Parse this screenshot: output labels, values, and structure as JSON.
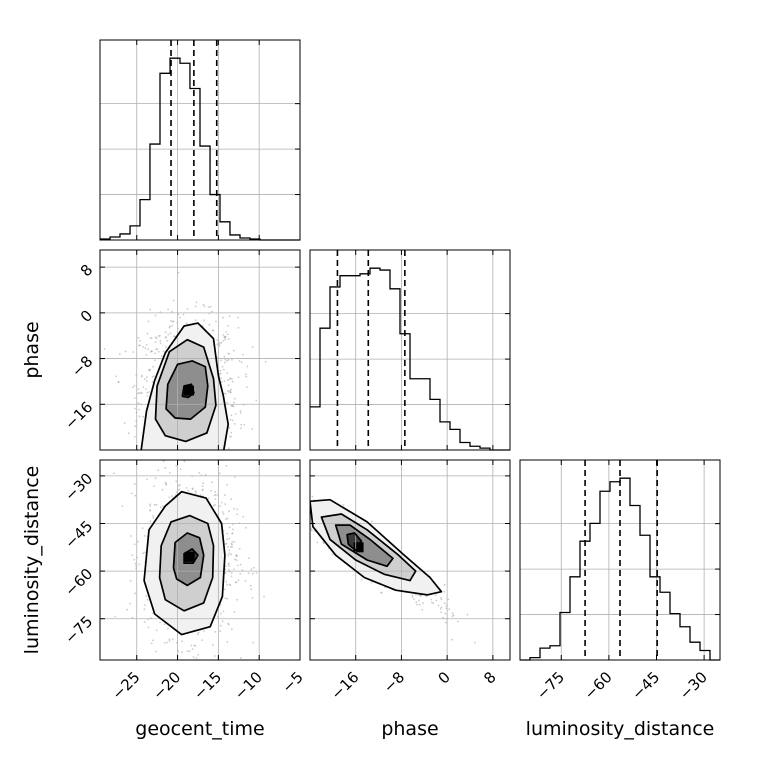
{
  "chart_data": {
    "type": "corner",
    "parameters": [
      "geocent_time",
      "phase",
      "luminosity_distance"
    ],
    "grid": true,
    "colors": {
      "line": "#000000",
      "grid": "#b0b0b0",
      "scatter": "#a0a0a0"
    },
    "axes": {
      "geocent_time": {
        "range": [
          -29.5,
          -5
        ],
        "ticks": [
          -25,
          -20,
          -15,
          -10,
          -5
        ]
      },
      "phase": {
        "range": [
          -24,
          11
        ],
        "ticks": [
          -16,
          -8,
          0,
          8
        ]
      },
      "luminosity_distance": {
        "range": [
          -88,
          -25
        ],
        "ticks": [
          -75,
          -60,
          -45,
          -30
        ]
      }
    },
    "tick_labels": {
      "geocent_time": [
        "−25",
        "−20",
        "−15",
        "−10",
        "−5"
      ],
      "phase": [
        "−16",
        "−8",
        "0",
        "8"
      ],
      "luminosity_distance": [
        "−75",
        "−60",
        "−45",
        "−30"
      ]
    },
    "quantiles": {
      "geocent_time": [
        -20.8,
        -18.0,
        -15.2
      ],
      "phase": [
        -19.2,
        -13.8,
        -7.4
      ],
      "luminosity_distance": [
        -67.5,
        -56.5,
        -44.8
      ]
    },
    "histograms": {
      "geocent_time": {
        "edges": [
          -29.5,
          -28.27,
          -27.05,
          -25.82,
          -24.6,
          -23.38,
          -22.15,
          -20.92,
          -19.7,
          -18.48,
          -17.25,
          -16.02,
          -14.8,
          -13.58,
          -12.35,
          -11.12,
          -9.9,
          -8.68,
          -7.45,
          -6.22,
          -5.0
        ],
        "counts": [
          1,
          3,
          6,
          14,
          40,
          95,
          165,
          180,
          175,
          150,
          93,
          45,
          18,
          5,
          2,
          1,
          0,
          0,
          0,
          0
        ]
      },
      "phase": {
        "edges": [
          -24,
          -22.25,
          -20.5,
          -18.75,
          -17,
          -15.25,
          -13.5,
          -11.75,
          -10,
          -8.25,
          -6.5,
          -4.75,
          -3,
          -1.25,
          0.5,
          2.25,
          4,
          5.75,
          7.5,
          9.25,
          11
        ],
        "counts": [
          23,
          65,
          87,
          93,
          93,
          94,
          97,
          96,
          86,
          62,
          38,
          38,
          27,
          15,
          11,
          4,
          2,
          1,
          0,
          0
        ]
      },
      "luminosity_distance": {
        "edges": [
          -88,
          -84.85,
          -81.7,
          -78.55,
          -75.4,
          -72.25,
          -69.1,
          -65.95,
          -62.8,
          -59.65,
          -56.5,
          -53.35,
          -50.2,
          -47.05,
          -43.9,
          -40.75,
          -37.6,
          -34.45,
          -31.3,
          -28.15,
          -25
        ],
        "counts": [
          0,
          2,
          10,
          12,
          40,
          70,
          100,
          115,
          142,
          150,
          153,
          130,
          105,
          70,
          57,
          39,
          28,
          15,
          8,
          0
        ]
      }
    },
    "joint": [
      {
        "x": "geocent_time",
        "y": "phase",
        "density_peak": [
          -18.6,
          -13.6
        ],
        "contours": [
          [
            [
              -24.5,
              -24.5
            ],
            [
              -23.8,
              -17.2
            ],
            [
              -22.8,
              -11.8
            ],
            [
              -21.5,
              -7.0
            ],
            [
              -19.2,
              -2.3
            ],
            [
              -17.5,
              -1.8
            ],
            [
              -15.6,
              -4.5
            ],
            [
              -15.0,
              -11.0
            ],
            [
              -14.4,
              -14.5
            ],
            [
              -13.8,
              -19.5
            ],
            [
              -14.4,
              -24.5
            ]
          ],
          [
            [
              -22.7,
              -18.6
            ],
            [
              -22.5,
              -12.8
            ],
            [
              -21.0,
              -6.8
            ],
            [
              -18.8,
              -4.7
            ],
            [
              -16.8,
              -6.0
            ],
            [
              -15.6,
              -11.5
            ],
            [
              -15.3,
              -16.2
            ],
            [
              -16.4,
              -21.0
            ],
            [
              -19.0,
              -22.5
            ],
            [
              -21.5,
              -21.5
            ]
          ],
          [
            [
              -21.4,
              -16.8
            ],
            [
              -21.2,
              -12.5
            ],
            [
              -20.0,
              -9.0
            ],
            [
              -18.2,
              -8.4
            ],
            [
              -16.6,
              -9.4
            ],
            [
              -16.3,
              -12.8
            ],
            [
              -16.6,
              -16.5
            ],
            [
              -18.4,
              -18.6
            ],
            [
              -20.3,
              -18.4
            ]
          ],
          [
            [
              -19.4,
              -14.6
            ],
            [
              -19.2,
              -12.8
            ],
            [
              -18.3,
              -12.5
            ],
            [
              -18.0,
              -14.0
            ],
            [
              -18.7,
              -14.8
            ]
          ]
        ]
      },
      {
        "x": "geocent_time",
        "y": "luminosity_distance",
        "density_peak": [
          -18.5,
          -55.5
        ],
        "contours": [
          [
            [
              -24.1,
              -63.0
            ],
            [
              -23.5,
              -47.0
            ],
            [
              -21.5,
              -39.5
            ],
            [
              -19.5,
              -35.0
            ],
            [
              -16.5,
              -37.0
            ],
            [
              -14.6,
              -45.0
            ],
            [
              -14.2,
              -55.0
            ],
            [
              -14.5,
              -68.0
            ],
            [
              -16.0,
              -77.5
            ],
            [
              -19.5,
              -80.0
            ],
            [
              -22.8,
              -73.5
            ]
          ],
          [
            [
              -22.2,
              -62.0
            ],
            [
              -22.0,
              -52.0
            ],
            [
              -20.8,
              -44.5
            ],
            [
              -18.5,
              -42.5
            ],
            [
              -16.3,
              -45.0
            ],
            [
              -15.6,
              -52.0
            ],
            [
              -15.7,
              -62.0
            ],
            [
              -16.8,
              -70.0
            ],
            [
              -19.2,
              -72.5
            ],
            [
              -21.5,
              -69.0
            ]
          ],
          [
            [
              -20.5,
              -59.0
            ],
            [
              -20.3,
              -51.0
            ],
            [
              -18.8,
              -48.0
            ],
            [
              -17.3,
              -49.5
            ],
            [
              -16.8,
              -55.0
            ],
            [
              -17.2,
              -62.0
            ],
            [
              -18.8,
              -64.5
            ],
            [
              -20.1,
              -62.5
            ]
          ],
          [
            [
              -19.2,
              -57.5
            ],
            [
              -19.2,
              -54.5
            ],
            [
              -18.2,
              -53.0
            ],
            [
              -17.5,
              -55.0
            ],
            [
              -18.1,
              -57.5
            ]
          ]
        ]
      },
      {
        "x": "phase",
        "y": "luminosity_distance",
        "density_peak": [
          -15.5,
          -52.5
        ],
        "contours": [
          [
            [
              -24.0,
              -38.0
            ],
            [
              -20.5,
              -37.5
            ],
            [
              -14.0,
              -44.5
            ],
            [
              -7.5,
              -55.0
            ],
            [
              -3.0,
              -62.0
            ],
            [
              -1.0,
              -66.5
            ],
            [
              -3.5,
              -67.5
            ],
            [
              -9.0,
              -66.0
            ],
            [
              -14.5,
              -62.0
            ],
            [
              -19.5,
              -55.0
            ],
            [
              -23.5,
              -46.0
            ]
          ],
          [
            [
              -22.0,
              -43.0
            ],
            [
              -18.5,
              -42.0
            ],
            [
              -14.0,
              -47.0
            ],
            [
              -8.5,
              -55.0
            ],
            [
              -5.5,
              -60.0
            ],
            [
              -6.5,
              -63.0
            ],
            [
              -11.0,
              -61.0
            ],
            [
              -16.0,
              -56.5
            ],
            [
              -20.5,
              -50.0
            ]
          ],
          [
            [
              -19.5,
              -45.5
            ],
            [
              -17.0,
              -45.5
            ],
            [
              -13.5,
              -50.0
            ],
            [
              -9.5,
              -56.0
            ],
            [
              -10.5,
              -58.5
            ],
            [
              -14.0,
              -56.5
            ],
            [
              -18.5,
              -51.5
            ]
          ],
          [
            [
              -17.5,
              -48.5
            ],
            [
              -16.2,
              -48.0
            ],
            [
              -15.0,
              -50.5
            ],
            [
              -16.0,
              -53.5
            ],
            [
              -17.3,
              -51.5
            ]
          ]
        ]
      }
    ]
  }
}
